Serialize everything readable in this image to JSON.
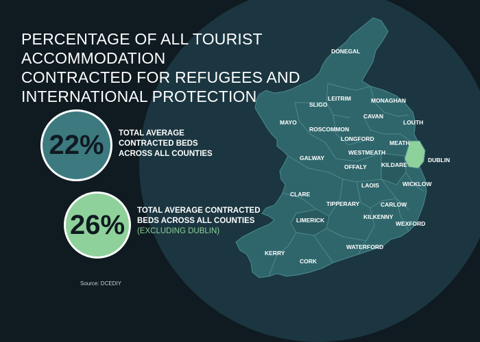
{
  "title": {
    "line1": "PERCENTAGE OF ALL TOURIST ACCOMMODATION",
    "line2": "CONTRACTED FOR REFUGEES AND",
    "line3": "INTERNATIONAL PROTECTION"
  },
  "stats": [
    {
      "value": "22%",
      "lines": [
        "TOTAL AVERAGE",
        "CONTRACTED BEDS",
        "ACROSS ALL COUNTIES"
      ],
      "color": "#3c7a80"
    },
    {
      "value": "26%",
      "lines": [
        "TOTAL AVERAGE CONTRACTED",
        "BEDS ACROSS ALL COUNTIES"
      ],
      "note": "(EXCLUDING DUBLIN)",
      "color": "#8fd19a"
    }
  ],
  "counties": [
    "DONEGAL",
    "SLIGO",
    "LEITRIM",
    "MONAGHAN",
    "MAYO",
    "CAVAN",
    "LOUTH",
    "ROSCOMMON",
    "LONGFORD",
    "MEATH",
    "WESTMEATH",
    "GALWAY",
    "DUBLIN",
    "OFFALY",
    "KILDARE",
    "WICKLOW",
    "LAOIS",
    "CLARE",
    "TIPPERARY",
    "CARLOW",
    "LIMERICK",
    "KILKENNY",
    "WEXFORD",
    "WATERFORD",
    "KERRY",
    "CORK"
  ],
  "highlight_county": "DUBLIN",
  "colors": {
    "background": "#0f1a21",
    "land": "#2f666b",
    "land_dark": "#285a5f",
    "border": "#4d8a8f",
    "highlight": "#8fd19a"
  },
  "source": "Source: DCEDIY"
}
